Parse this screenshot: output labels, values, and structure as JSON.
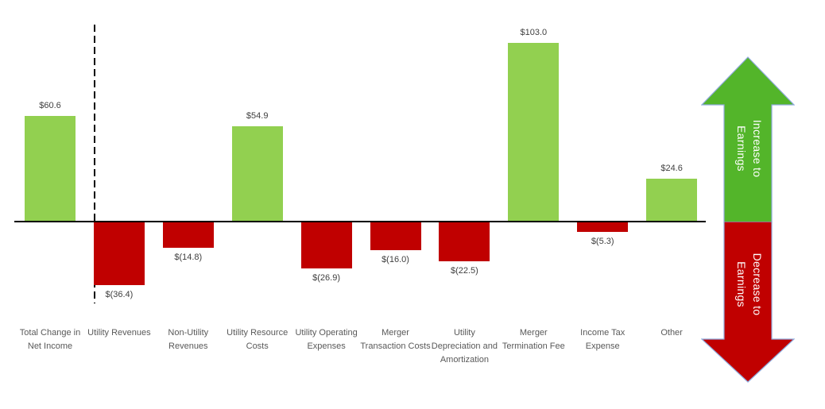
{
  "chart_data": {
    "type": "bar",
    "subtype": "waterfall-change-analysis",
    "title": "",
    "xlabel": "",
    "ylabel": "",
    "gridlines": false,
    "baseline": 0,
    "ylim": [
      -45,
      115
    ],
    "currency_format": "positive: $X.X, negative: $(X.X)",
    "categories": [
      "Total Change in\nNet Income",
      "Utility Revenues",
      "Non-Utility\nRevenues",
      "Utility Resource\nCosts",
      "Utility Operating\nExpenses",
      "Merger\nTransaction Costs",
      "Utility\nDepreciation and\nAmortization",
      "Merger\nTermination Fee",
      "Income Tax\nExpense",
      "Other"
    ],
    "values": [
      60.6,
      -36.4,
      -14.8,
      54.9,
      -26.9,
      -16.0,
      -22.5,
      103.0,
      -5.3,
      24.6
    ],
    "value_labels": [
      "$60.6",
      "$(36.4)",
      "$(14.8)",
      "$54.9",
      "$(26.9)",
      "$(16.0)",
      "$(22.5)",
      "$103.0",
      "$(5.3)",
      "$24.6"
    ],
    "colors": {
      "increase_bar": "#92D050",
      "decrease_bar": "#C00000"
    },
    "separator_after_first_bar": true
  },
  "legend": {
    "increase": {
      "label": "Increase to\nEarnings",
      "color": "#53B52A"
    },
    "decrease": {
      "label": "Decrease to\nEarnings",
      "color": "#C00000"
    },
    "arrow_outline": "#8FAADC"
  }
}
